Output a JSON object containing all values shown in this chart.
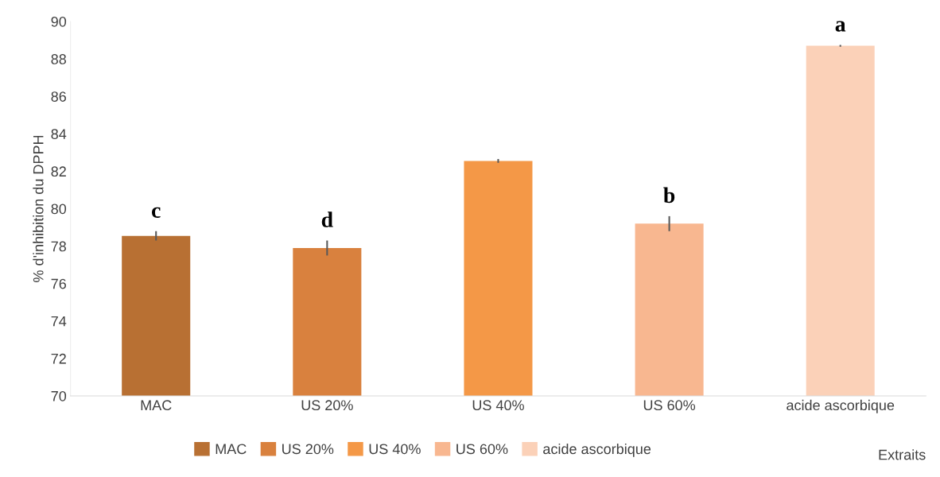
{
  "chart_data": {
    "type": "bar",
    "xlabel": "Extraits",
    "ylabel": "% d'inhibition du DPPH",
    "categories": [
      "MAC",
      "US 20%",
      "US 40%",
      "US 60%",
      "acide ascorbique"
    ],
    "series": [
      {
        "name": "MAC",
        "color": "#b87033",
        "values": [
          78.55,
          null,
          null,
          null,
          null
        ],
        "errors": [
          0.25,
          null,
          null,
          null,
          null
        ],
        "value_labels": [
          "c",
          null,
          null,
          null,
          null
        ]
      },
      {
        "name": "US 20%",
        "color": "#d9813e",
        "values": [
          null,
          77.9,
          null,
          null,
          null
        ],
        "errors": [
          null,
          0.4,
          null,
          null,
          null
        ],
        "value_labels": [
          null,
          "d",
          null,
          null,
          null
        ]
      },
      {
        "name": "US 40%",
        "color": "#f49847",
        "values": [
          null,
          null,
          82.55,
          null,
          null
        ],
        "errors": [
          null,
          null,
          0.1,
          null,
          null
        ],
        "value_labels": [
          null,
          null,
          null,
          null,
          null
        ]
      },
      {
        "name": "US 60%",
        "color": "#f8b790",
        "values": [
          null,
          null,
          null,
          79.2,
          null
        ],
        "errors": [
          null,
          null,
          null,
          0.4,
          null
        ],
        "value_labels": [
          null,
          null,
          null,
          "b",
          null
        ]
      },
      {
        "name": "acide ascorbique",
        "color": "#fbd1b8",
        "values": [
          null,
          null,
          null,
          null,
          88.7
        ],
        "errors": [
          null,
          null,
          null,
          null,
          0.05
        ],
        "value_labels": [
          null,
          null,
          null,
          null,
          "a"
        ]
      }
    ],
    "ylim": [
      70,
      90
    ],
    "yticks": [
      70,
      72,
      74,
      76,
      78,
      80,
      82,
      84,
      86,
      88,
      90
    ],
    "grid": false,
    "legend": "bottom"
  }
}
